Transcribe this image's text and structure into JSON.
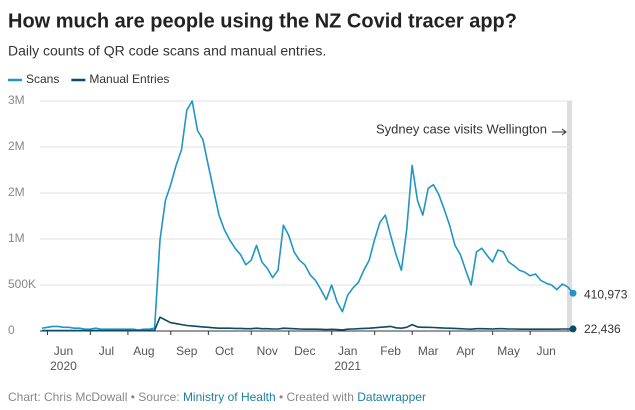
{
  "chart_data": {
    "type": "line",
    "title": "How much are people using the NZ Covid tracer app?",
    "subtitle": "Daily counts of QR code scans and manual entries.",
    "annotation": "Sydney case visits Wellington",
    "footer": {
      "credit": "Chart: Chris McDowall",
      "source_label": "• Source:",
      "source": "Ministry of Health",
      "made_with": "• Created with",
      "tool": "Datawrapper"
    },
    "categories": [
      null,
      null,
      null,
      null,
      "Jun 2020",
      null,
      null,
      null,
      null,
      null,
      null,
      null,
      "Jul",
      null,
      null,
      null,
      null,
      null,
      null,
      "Aug",
      null,
      null,
      null,
      null,
      null,
      null,
      null,
      "Sep",
      null,
      null,
      null,
      null,
      null,
      null,
      "Oct",
      null,
      null,
      null,
      null,
      null,
      null,
      null,
      "Nov",
      null,
      null,
      null,
      null,
      null,
      null,
      "Dec",
      null,
      null,
      null,
      null,
      null,
      null,
      null,
      "Jan 2021",
      null,
      null,
      null,
      null,
      null,
      null,
      null,
      "Feb",
      null,
      null,
      null,
      null,
      null,
      null,
      "Mar",
      null,
      null,
      null,
      null,
      null,
      null,
      "Apr",
      null,
      null,
      null,
      null,
      null,
      null,
      null,
      "May",
      null,
      null,
      null,
      null,
      null,
      null,
      "Jun",
      null,
      null,
      null,
      null,
      null
    ],
    "series": [
      {
        "name": "Scans",
        "color": "#2196c4",
        "values": [
          30000,
          40000,
          50000,
          50000,
          40000,
          40000,
          30000,
          30000,
          20000,
          20000,
          30000,
          20000,
          20000,
          20000,
          20000,
          20000,
          20000,
          20000,
          10000,
          20000,
          20000,
          30000,
          990000,
          1420000,
          1590000,
          1800000,
          1970000,
          2400000,
          2500000,
          2180000,
          2080000,
          1800000,
          1530000,
          1260000,
          1100000,
          990000,
          900000,
          830000,
          720000,
          770000,
          930000,
          750000,
          680000,
          580000,
          660000,
          1150000,
          1040000,
          860000,
          770000,
          720000,
          610000,
          550000,
          450000,
          340000,
          500000,
          320000,
          210000,
          390000,
          470000,
          530000,
          660000,
          770000,
          990000,
          1180000,
          1260000,
          1040000,
          830000,
          660000,
          1100000,
          1800000,
          1420000,
          1260000,
          1550000,
          1590000,
          1480000,
          1320000,
          1150000,
          930000,
          830000,
          660000,
          500000,
          860000,
          900000,
          820000,
          750000,
          880000,
          860000,
          750000,
          710000,
          660000,
          640000,
          600000,
          620000,
          550000,
          520000,
          500000,
          450000,
          510000,
          480000,
          410973
        ],
        "value_labels": [
          null,
          null,
          null,
          null,
          null,
          null,
          null,
          null,
          null,
          null,
          null,
          null,
          null,
          null,
          null,
          null,
          null,
          null,
          null,
          null,
          null,
          null,
          null,
          null,
          null,
          null,
          null,
          null,
          null,
          null,
          null,
          null,
          null,
          null,
          null,
          null,
          null,
          null,
          null,
          null,
          null,
          null,
          null,
          null,
          null,
          null,
          null,
          null,
          null,
          null,
          null,
          null,
          null,
          null,
          null,
          null,
          null,
          null,
          null,
          null,
          null,
          null,
          null,
          null,
          null,
          null,
          null,
          null,
          null,
          null,
          null,
          null,
          null,
          null,
          null,
          null,
          null,
          null,
          null,
          null,
          null,
          null,
          null,
          null,
          null,
          null,
          null,
          null,
          null,
          null,
          null,
          null,
          null,
          null,
          null,
          null,
          null,
          null,
          null,
          "410,973"
        ]
      },
      {
        "name": "Manual Entries",
        "color": "#0b4a68",
        "values": [
          5000,
          5000,
          5000,
          5000,
          5000,
          5000,
          5000,
          5000,
          5000,
          5000,
          5000,
          5000,
          5000,
          5000,
          5000,
          5000,
          5000,
          5000,
          5000,
          5000,
          5000,
          8000,
          150000,
          120000,
          90000,
          80000,
          70000,
          60000,
          55000,
          50000,
          45000,
          40000,
          35000,
          30000,
          30000,
          30000,
          28000,
          28000,
          25000,
          25000,
          30000,
          25000,
          25000,
          22000,
          22000,
          30000,
          28000,
          25000,
          22000,
          20000,
          20000,
          20000,
          18000,
          15000,
          18000,
          15000,
          12000,
          20000,
          22000,
          25000,
          28000,
          30000,
          35000,
          40000,
          45000,
          50000,
          35000,
          30000,
          40000,
          70000,
          45000,
          40000,
          40000,
          38000,
          35000,
          32000,
          30000,
          28000,
          25000,
          22000,
          20000,
          25000,
          25000,
          24000,
          22000,
          25000,
          25000,
          22000,
          22000,
          20000,
          20000,
          20000,
          20000,
          20000,
          20000,
          20000,
          20000,
          22000,
          22000,
          22436
        ],
        "value_labels": [
          null,
          null,
          null,
          null,
          null,
          null,
          null,
          null,
          null,
          null,
          null,
          null,
          null,
          null,
          null,
          null,
          null,
          null,
          null,
          null,
          null,
          null,
          null,
          null,
          null,
          null,
          null,
          null,
          null,
          null,
          null,
          null,
          null,
          null,
          null,
          null,
          null,
          null,
          null,
          null,
          null,
          null,
          null,
          null,
          null,
          null,
          null,
          null,
          null,
          null,
          null,
          null,
          null,
          null,
          null,
          null,
          null,
          null,
          null,
          null,
          null,
          null,
          null,
          null,
          null,
          null,
          null,
          null,
          null,
          null,
          null,
          null,
          null,
          null,
          null,
          null,
          null,
          null,
          null,
          null,
          null,
          null,
          null,
          null,
          null,
          null,
          null,
          null,
          null,
          null,
          null,
          null,
          null,
          null,
          null,
          null,
          null,
          null,
          null,
          "22,436"
        ]
      }
    ],
    "ylim": [
      0,
      2500000
    ],
    "yticks": [
      0,
      {
        "value": 500000,
        "label": "500K"
      },
      {
        "value": 1000000,
        "label": "1M"
      },
      {
        "value": 1500000,
        "label": "2M"
      },
      {
        "value": 2000000,
        "label": "2M"
      },
      {
        "value": 2500000,
        "label": "3M"
      }
    ],
    "grid": true,
    "legend": "top-left"
  }
}
